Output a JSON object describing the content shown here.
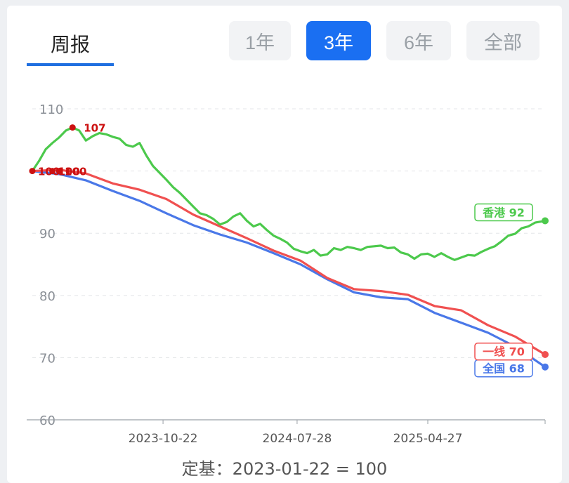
{
  "tabs": {
    "weekly": "周报"
  },
  "ranges": [
    {
      "label": "1年",
      "active": false
    },
    {
      "label": "3年",
      "active": true
    },
    {
      "label": "6年",
      "active": false
    },
    {
      "label": "全部",
      "active": false
    }
  ],
  "footer": "定基：2023-01-22 = 100",
  "colors": {
    "hongkong": "#4cc94c",
    "tier1": "#f05050",
    "national": "#4a78e8",
    "accent": "#1a6ff2"
  },
  "chart_data": {
    "type": "line",
    "title": "",
    "xlabel": "",
    "ylabel": "",
    "base_date": "2023-01-22",
    "ylim": [
      60,
      110
    ],
    "yticks": [
      60,
      70,
      80,
      90,
      100,
      110
    ],
    "ytick_labels_shown": [
      "60",
      "70",
      "80",
      "90",
      "110"
    ],
    "xlim": [
      "2023-01-22",
      "2025-12-28"
    ],
    "xticks": [
      "2023-10-22",
      "2024-07-28",
      "2025-04-27"
    ],
    "grid": true,
    "legend": "end-labels",
    "series": [
      {
        "name": "香港",
        "color": "#4cc94c",
        "end_label": "香港 92",
        "x": [
          "2023-01-22",
          "2023-02-05",
          "2023-02-19",
          "2023-03-05",
          "2023-03-19",
          "2023-04-02",
          "2023-04-16",
          "2023-04-30",
          "2023-05-14",
          "2023-05-28",
          "2023-06-11",
          "2023-06-25",
          "2023-07-09",
          "2023-07-23",
          "2023-08-06",
          "2023-08-20",
          "2023-09-03",
          "2023-09-17",
          "2023-10-01",
          "2023-10-15",
          "2023-10-29",
          "2023-11-12",
          "2023-11-26",
          "2023-12-10",
          "2023-12-24",
          "2024-01-07",
          "2024-01-21",
          "2024-02-04",
          "2024-02-18",
          "2024-03-03",
          "2024-03-17",
          "2024-03-31",
          "2024-04-14",
          "2024-04-28",
          "2024-05-12",
          "2024-05-26",
          "2024-06-09",
          "2024-06-23",
          "2024-07-07",
          "2024-07-21",
          "2024-08-04",
          "2024-08-18",
          "2024-09-01",
          "2024-09-15",
          "2024-09-29",
          "2024-10-13",
          "2024-10-27",
          "2024-11-10",
          "2024-11-24",
          "2024-12-08",
          "2024-12-22",
          "2025-01-05",
          "2025-01-19",
          "2025-02-02",
          "2025-02-16",
          "2025-03-02",
          "2025-03-16",
          "2025-03-30",
          "2025-04-13",
          "2025-04-27",
          "2025-05-11",
          "2025-05-25",
          "2025-06-08",
          "2025-06-22",
          "2025-07-06",
          "2025-07-20",
          "2025-08-03",
          "2025-08-17",
          "2025-08-31",
          "2025-09-14",
          "2025-09-28",
          "2025-10-12",
          "2025-10-26",
          "2025-11-09",
          "2025-11-23",
          "2025-12-07",
          "2025-12-21",
          "2025-12-28"
        ],
        "values": [
          100,
          101.6,
          103.5,
          104.5,
          105.4,
          106.5,
          107,
          106.5,
          104.9,
          105.6,
          106.1,
          105.9,
          105.5,
          105.2,
          104.2,
          103.9,
          104.5,
          102.5,
          100.8,
          99.7,
          98.6,
          97.4,
          96.5,
          95.4,
          94.3,
          93.2,
          92.9,
          92.3,
          91.4,
          91.8,
          92.7,
          93.2,
          92,
          91.1,
          91.5,
          90.5,
          89.6,
          89.1,
          88.5,
          87.5,
          87.1,
          86.8,
          87.3,
          86.4,
          86.6,
          87.6,
          87.3,
          87.8,
          87.6,
          87.3,
          87.8,
          87.9,
          88,
          87.6,
          87.7,
          86.9,
          86.6,
          85.9,
          86.6,
          86.7,
          86.2,
          86.8,
          86.2,
          85.7,
          86.1,
          86.5,
          86.4,
          87,
          87.5,
          87.9,
          88.7,
          89.6,
          89.9,
          90.8,
          91.1,
          91.7,
          91.9,
          92
        ]
      },
      {
        "name": "一线",
        "color": "#f05050",
        "end_label": "一线 70",
        "x": [
          "2023-01-22",
          "2023-03-19",
          "2023-05-14",
          "2023-07-09",
          "2023-09-03",
          "2023-10-29",
          "2023-12-24",
          "2024-02-18",
          "2024-04-14",
          "2024-06-09",
          "2024-08-04",
          "2024-09-29",
          "2024-11-24",
          "2025-01-19",
          "2025-03-16",
          "2025-05-11",
          "2025-07-06",
          "2025-08-31",
          "2025-10-26",
          "2025-12-28"
        ],
        "values": [
          100,
          100.2,
          99.6,
          98,
          97,
          95.5,
          93,
          91.1,
          89.2,
          87.2,
          85.6,
          82.8,
          81,
          80.7,
          80.1,
          78.3,
          77.6,
          75.2,
          73.4,
          70.5
        ]
      },
      {
        "name": "全国",
        "color": "#4a78e8",
        "end_label": "全国 68",
        "x": [
          "2023-01-22",
          "2023-03-19",
          "2023-05-14",
          "2023-07-09",
          "2023-09-03",
          "2023-10-29",
          "2023-12-24",
          "2024-02-18",
          "2024-04-14",
          "2024-06-09",
          "2024-08-04",
          "2024-09-29",
          "2024-11-24",
          "2025-01-19",
          "2025-03-16",
          "2025-05-11",
          "2025-07-06",
          "2025-08-31",
          "2025-10-26",
          "2025-12-28"
        ],
        "values": [
          100,
          99.5,
          98.5,
          96.8,
          95.2,
          93.2,
          91.3,
          89.8,
          88.5,
          86.8,
          85,
          82.6,
          80.5,
          79.7,
          79.4,
          77.2,
          75.6,
          74,
          71.8,
          68.5
        ]
      }
    ],
    "annotations": [
      {
        "label": "107",
        "x": "2023-04-16",
        "y": 107,
        "color": "#cc1111"
      },
      {
        "label": "100",
        "x": "2023-01-22",
        "y": 100,
        "color": "#cc1111"
      },
      {
        "label": "100",
        "x": "2023-03-05",
        "y": 100,
        "color": "#cc1111"
      },
      {
        "label": "100",
        "x": "2023-03-19",
        "y": 100,
        "color": "#cc1111"
      }
    ]
  }
}
